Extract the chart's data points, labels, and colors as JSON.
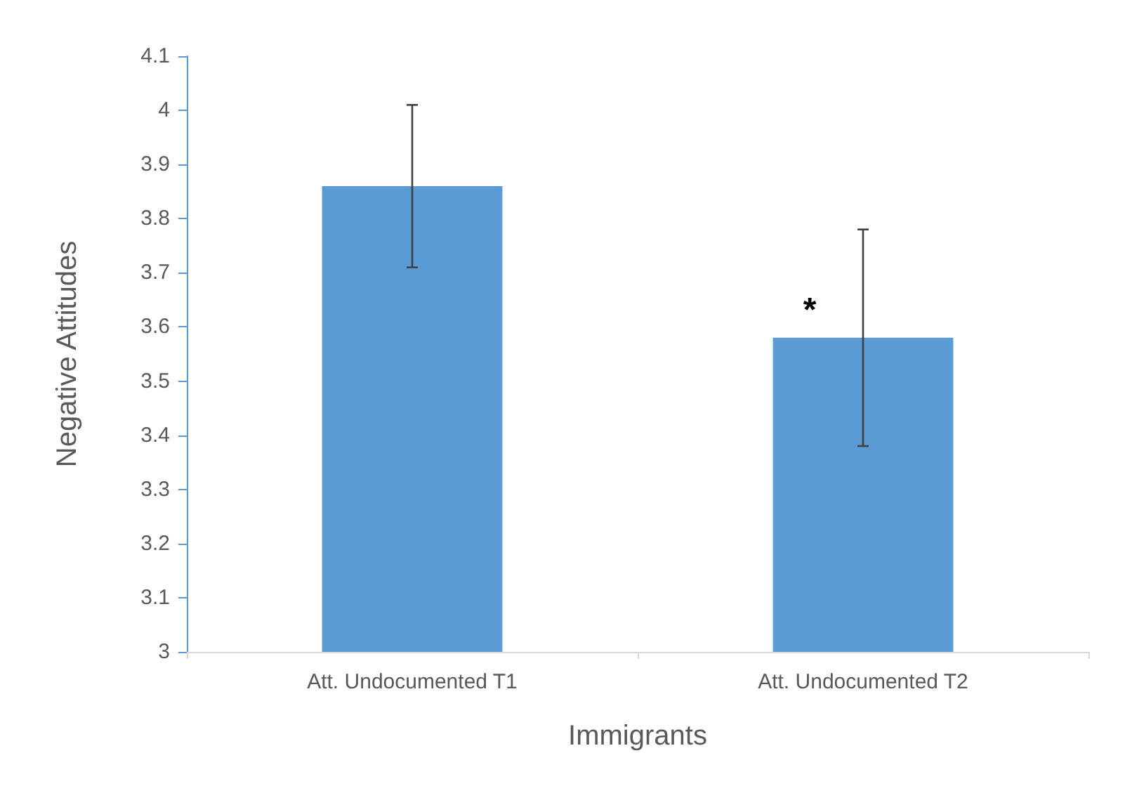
{
  "chart_data": {
    "type": "bar",
    "xlabel": "Immigrants",
    "ylabel": "Negative Attitudes",
    "categories": [
      "Att. Undocumented T1",
      "Att. Undocumented T2"
    ],
    "values": [
      3.86,
      3.58
    ],
    "errors": [
      0.15,
      0.2
    ],
    "color": "#5b9bd5",
    "ylim": [
      3,
      4.1
    ],
    "yticks": [
      3,
      3.1,
      3.2,
      3.3,
      3.4,
      3.5,
      3.6,
      3.7,
      3.8,
      3.9,
      4,
      4.1
    ],
    "annotations": [
      {
        "text": "*",
        "x": "Att. Undocumented T2",
        "y": 3.63
      }
    ]
  }
}
